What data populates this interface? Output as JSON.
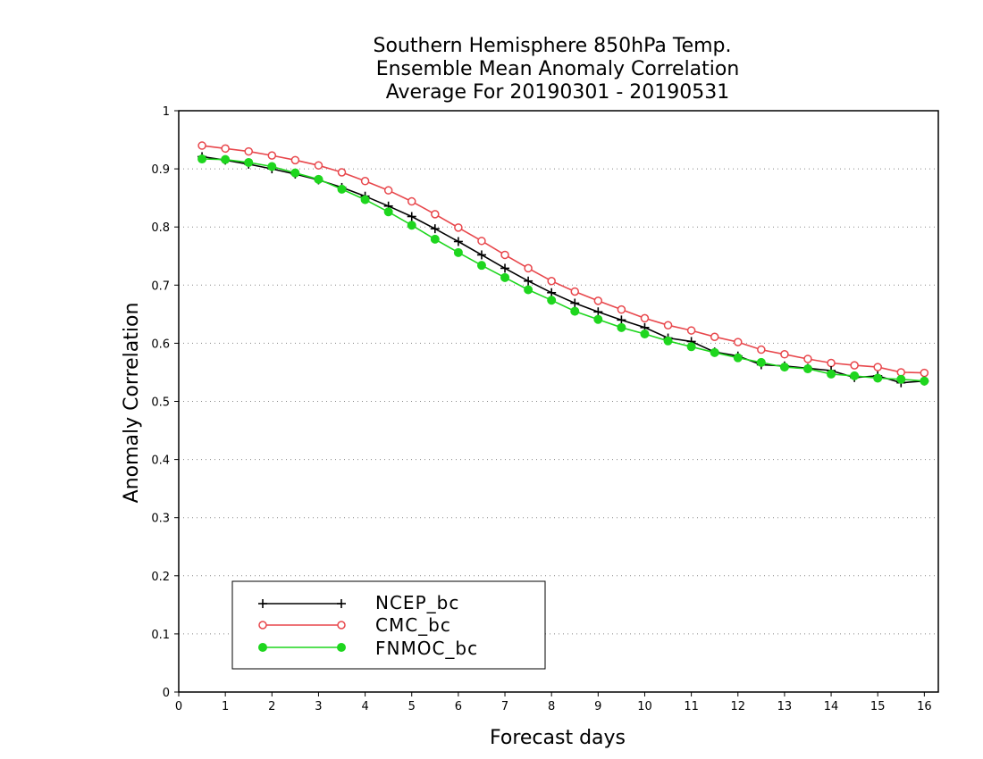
{
  "chart_data": {
    "type": "line",
    "title": [
      "Southern Hemisphere 850hPa Temp.",
      "Ensemble Mean Anomaly Correlation",
      "Average For 20190301 - 20190531"
    ],
    "xlabel": "Forecast days",
    "ylabel": "Anomaly Correlation",
    "xlim": [
      0,
      16.3
    ],
    "ylim": [
      0,
      1
    ],
    "xticks": [
      0,
      1,
      2,
      3,
      4,
      5,
      6,
      7,
      8,
      9,
      10,
      11,
      12,
      13,
      14,
      15,
      16
    ],
    "yticks": [
      0,
      0.1,
      0.2,
      0.3,
      0.4,
      0.5,
      0.6,
      0.7,
      0.8,
      0.9,
      1
    ],
    "ytick_labels": [
      "0",
      "0.1",
      "0.2",
      "0.3",
      "0.4",
      "0.5",
      "0.6",
      "0.7",
      "0.8",
      "0.9",
      "1"
    ],
    "grid": "horizontal dotted",
    "legend_position": "bottom-left",
    "x": [
      0.5,
      1,
      1.5,
      2,
      2.5,
      3,
      3.5,
      4,
      4.5,
      5,
      5.5,
      6,
      6.5,
      7,
      7.5,
      8,
      8.5,
      9,
      9.5,
      10,
      10.5,
      11,
      11.5,
      12,
      12.5,
      13,
      13.5,
      14,
      14.5,
      15,
      15.5,
      16
    ],
    "series": [
      {
        "name": "NCEP_bc",
        "color": "#000000",
        "marker": "plus",
        "values": [
          0.921,
          0.915,
          0.908,
          0.9,
          0.891,
          0.881,
          0.868,
          0.853,
          0.836,
          0.818,
          0.797,
          0.775,
          0.752,
          0.729,
          0.707,
          0.687,
          0.669,
          0.654,
          0.64,
          0.627,
          0.609,
          0.603,
          0.585,
          0.578,
          0.563,
          0.561,
          0.557,
          0.553,
          0.541,
          0.544,
          0.532,
          0.535
        ]
      },
      {
        "name": "CMC_bc",
        "color": "#e8474c",
        "marker": "open-circle",
        "values": [
          0.94,
          0.935,
          0.93,
          0.923,
          0.915,
          0.906,
          0.894,
          0.879,
          0.863,
          0.844,
          0.822,
          0.799,
          0.776,
          0.752,
          0.729,
          0.707,
          0.689,
          0.673,
          0.658,
          0.643,
          0.631,
          0.622,
          0.611,
          0.602,
          0.589,
          0.581,
          0.573,
          0.566,
          0.562,
          0.559,
          0.55,
          0.549
        ]
      },
      {
        "name": "FNMOC_bc",
        "color": "#1ed61e",
        "marker": "filled-circle",
        "values": [
          0.917,
          0.916,
          0.911,
          0.904,
          0.893,
          0.882,
          0.865,
          0.847,
          0.826,
          0.803,
          0.779,
          0.756,
          0.734,
          0.713,
          0.692,
          0.674,
          0.655,
          0.641,
          0.627,
          0.616,
          0.604,
          0.594,
          0.584,
          0.575,
          0.567,
          0.559,
          0.556,
          0.547,
          0.544,
          0.54,
          0.538,
          0.535
        ]
      }
    ]
  }
}
